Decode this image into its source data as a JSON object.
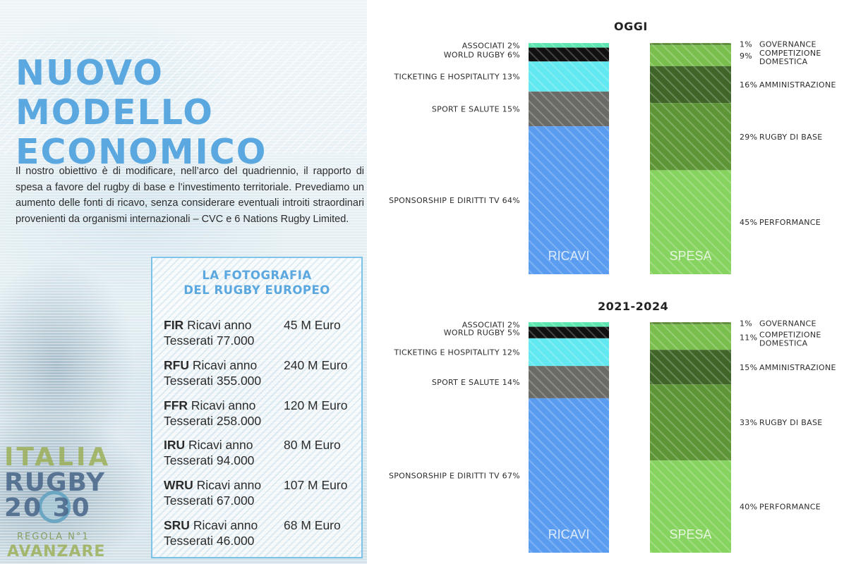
{
  "page": {
    "title_lines": [
      "NUOVO MODELLO",
      "ECONOMICO"
    ],
    "intro": "Il nostro obiettivo è di modificare, nell’arco del quadriennio, il rapporto di spesa a favore del rugby di base e l’investimento territoriale. Prevediamo un aumento delle fonti di ricavo, senza considerare eventuali introiti straordinari provenienti da organismi internazionali – CVC e 6 Nations Rugby Limited."
  },
  "info_box": {
    "title_lines": [
      "LA FOTOGRAFIA",
      "DEL RUGBY EUROPEO"
    ],
    "revenue_label": "Ricavi anno",
    "members_label": "Tesserati",
    "unions": [
      {
        "code": "FIR",
        "revenue": "45 M Euro",
        "members": "77.000"
      },
      {
        "code": "RFU",
        "revenue": "240 M Euro",
        "members": "355.000"
      },
      {
        "code": "FFR",
        "revenue": "120 M Euro",
        "members": "258.000"
      },
      {
        "code": "IRU",
        "revenue": "80 M Euro",
        "members": "94.000"
      },
      {
        "code": "WRU",
        "revenue": "107 M Euro",
        "members": "67.000"
      },
      {
        "code": "SRU",
        "revenue": "68 M Euro",
        "members": "46.000"
      }
    ]
  },
  "logo": {
    "line1": "ITALIA",
    "line2": "RUGBY",
    "line3": "20 30",
    "line4": "REGOLA N°1",
    "line5": "AVANZARE"
  },
  "colors": {
    "title_blue": "#5aa8df",
    "ricavi": [
      "#5ee6b0",
      "#111111",
      "#62e8f0",
      "#6a6a66",
      "#5a9cf0"
    ],
    "spesa": [
      "#5f8f3c",
      "#7abf4e",
      "#3f6628",
      "#5e9637",
      "#86d360"
    ]
  },
  "chart_data": [
    {
      "type": "stacked-bar",
      "title": "OGGI",
      "bars": [
        {
          "name": "RICAVI",
          "segments": [
            {
              "label": "ASSOCIATI",
              "value": 2
            },
            {
              "label": "WORLD RUGBY",
              "value": 6
            },
            {
              "label": "TICKETING E HOSPITALITY",
              "value": 13
            },
            {
              "label": "SPORT E SALUTE",
              "value": 15
            },
            {
              "label": "SPONSORSHIP E DIRITTI TV",
              "value": 64
            }
          ]
        },
        {
          "name": "SPESA",
          "segments": [
            {
              "label": "GOVERNANCE",
              "value": 1
            },
            {
              "label": "COMPETIZIONE DOMESTICA",
              "value": 9
            },
            {
              "label": "AMMINISTRAZIONE",
              "value": 16
            },
            {
              "label": "RUGBY DI BASE",
              "value": 29
            },
            {
              "label": "PERFORMANCE",
              "value": 45
            }
          ]
        }
      ],
      "unit": "%"
    },
    {
      "type": "stacked-bar",
      "title": "2021-2024",
      "bars": [
        {
          "name": "RICAVI",
          "segments": [
            {
              "label": "ASSOCIATI",
              "value": 2
            },
            {
              "label": "WORLD RUGBY",
              "value": 5
            },
            {
              "label": "TICKETING E HOSPITALITY",
              "value": 12
            },
            {
              "label": "SPORT E SALUTE",
              "value": 14
            },
            {
              "label": "SPONSORSHIP E DIRITTI TV",
              "value": 67
            }
          ]
        },
        {
          "name": "SPESA",
          "segments": [
            {
              "label": "GOVERNANCE",
              "value": 1
            },
            {
              "label": "COMPETIZIONE DOMESTICA",
              "value": 11
            },
            {
              "label": "AMMINISTRAZIONE",
              "value": 15
            },
            {
              "label": "RUGBY DI BASE",
              "value": 33
            },
            {
              "label": "PERFORMANCE",
              "value": 40
            }
          ]
        }
      ],
      "unit": "%"
    }
  ]
}
